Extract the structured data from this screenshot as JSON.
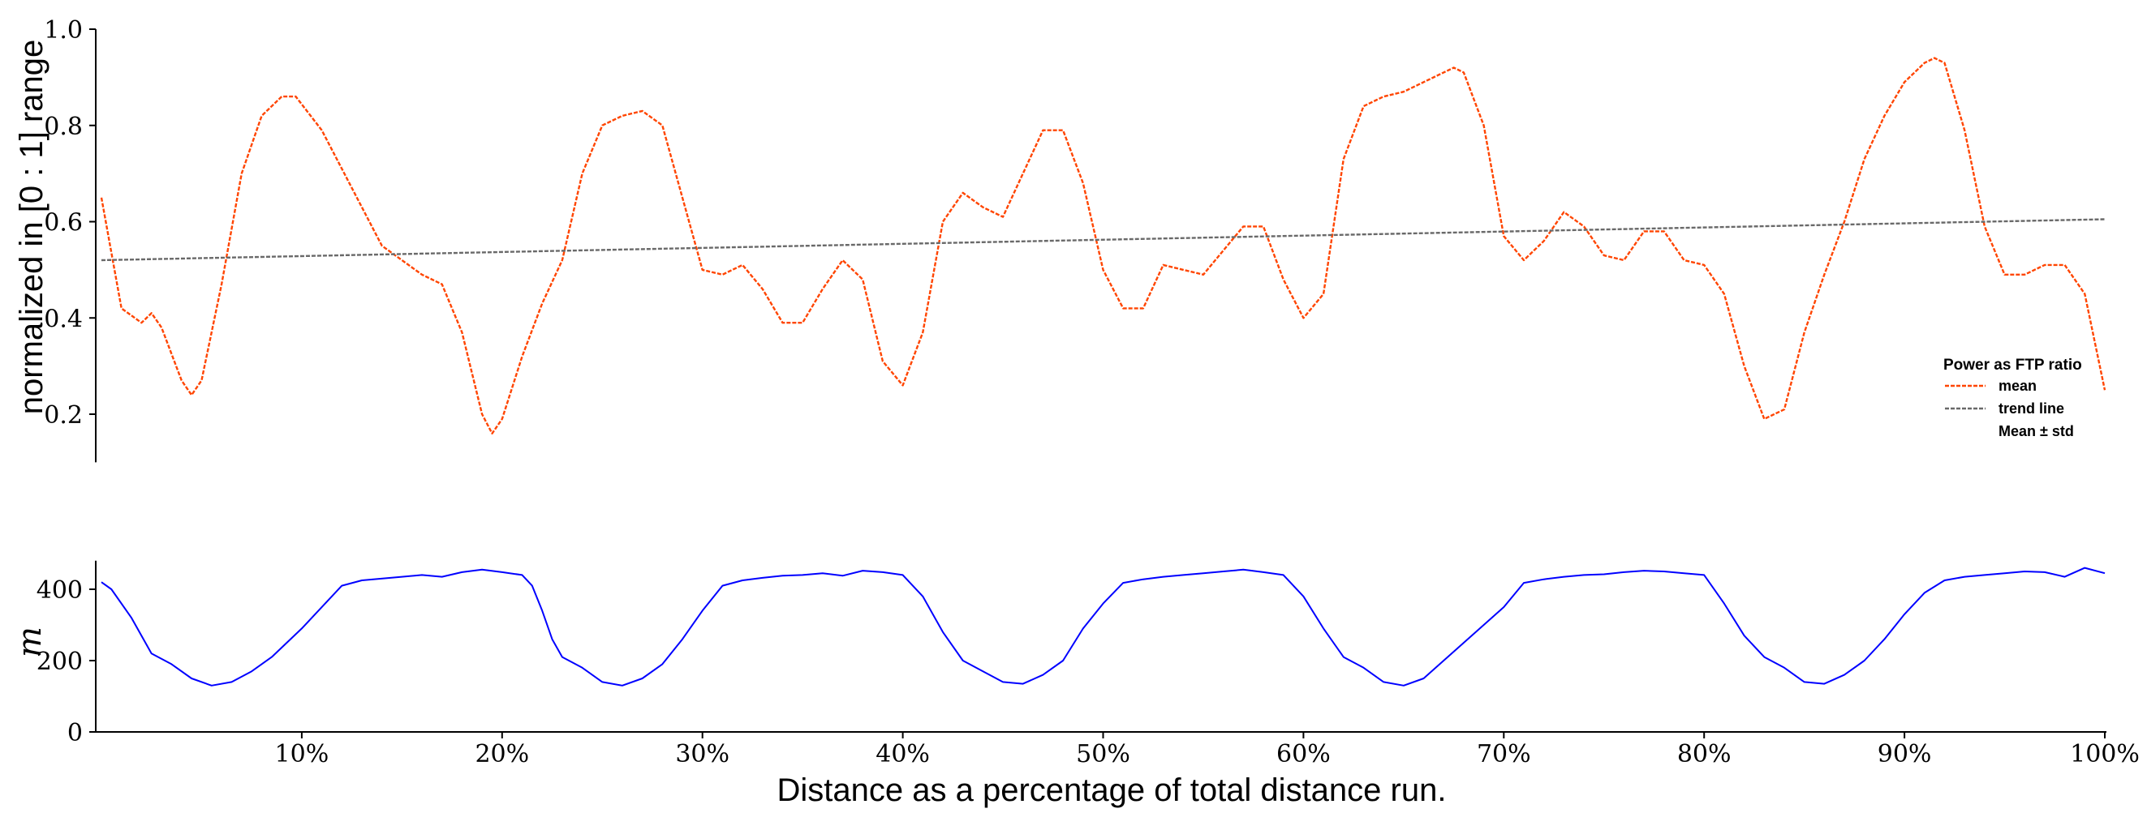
{
  "chart_data": [
    {
      "type": "line",
      "ylabel": "normalized in [0 : 1] range",
      "ylim": [
        0.1,
        1.0
      ],
      "yticks": [
        0.2,
        0.4,
        0.6,
        0.8,
        1.0
      ],
      "ytick_labels": [
        "0.2",
        "0.4",
        "0.6",
        "0.8",
        "1.0"
      ],
      "x_unit": "% of total distance",
      "xlim": [
        0,
        100
      ],
      "legend": {
        "title": "Power as FTP ratio",
        "placement": "right",
        "entries": [
          "mean",
          "trend line",
          "Mean ± std"
        ]
      },
      "series": [
        {
          "name": "mean",
          "color": "#ff4500",
          "style": "dashed",
          "x": [
            0,
            1,
            2,
            2.5,
            3,
            4,
            4.5,
            5,
            6,
            7,
            8,
            9,
            9.7,
            11,
            12,
            14,
            16,
            17,
            18,
            19,
            19.5,
            20,
            21,
            22,
            23,
            24,
            25,
            26,
            27,
            28,
            29,
            30,
            31,
            32,
            33,
            34,
            35,
            36,
            37,
            38,
            39,
            40,
            41,
            42,
            43,
            44,
            45,
            46,
            47,
            48,
            49,
            50,
            51,
            52,
            53,
            54,
            55,
            56,
            57,
            58,
            59,
            60,
            61,
            62,
            63,
            64,
            65,
            66,
            67,
            67.5,
            68,
            69,
            70,
            71,
            72,
            73,
            74,
            75,
            76,
            77,
            78,
            79,
            80,
            81,
            82,
            83,
            84,
            85,
            86,
            87,
            88,
            89,
            90,
            91,
            91.5,
            92,
            93,
            94,
            95,
            96,
            97,
            98,
            99,
            100
          ],
          "values": [
            0.65,
            0.42,
            0.39,
            0.41,
            0.38,
            0.27,
            0.24,
            0.27,
            0.47,
            0.7,
            0.82,
            0.86,
            0.86,
            0.79,
            0.71,
            0.55,
            0.49,
            0.47,
            0.37,
            0.2,
            0.16,
            0.19,
            0.32,
            0.43,
            0.52,
            0.7,
            0.8,
            0.82,
            0.83,
            0.8,
            0.65,
            0.5,
            0.49,
            0.51,
            0.46,
            0.39,
            0.39,
            0.46,
            0.52,
            0.48,
            0.31,
            0.26,
            0.37,
            0.6,
            0.66,
            0.63,
            0.61,
            0.7,
            0.79,
            0.79,
            0.68,
            0.5,
            0.42,
            0.42,
            0.51,
            0.5,
            0.49,
            0.54,
            0.59,
            0.59,
            0.48,
            0.4,
            0.45,
            0.73,
            0.84,
            0.86,
            0.87,
            0.89,
            0.91,
            0.92,
            0.91,
            0.8,
            0.57,
            0.52,
            0.56,
            0.62,
            0.59,
            0.53,
            0.52,
            0.58,
            0.58,
            0.52,
            0.51,
            0.45,
            0.3,
            0.19,
            0.21,
            0.37,
            0.49,
            0.6,
            0.73,
            0.82,
            0.89,
            0.93,
            0.94,
            0.93,
            0.79,
            0.59,
            0.49,
            0.49,
            0.51,
            0.51,
            0.45,
            0.25
          ]
        },
        {
          "name": "trend line",
          "color": "#696969",
          "style": "dashed",
          "x": [
            0,
            100
          ],
          "values": [
            0.52,
            0.605
          ]
        }
      ]
    },
    {
      "type": "line",
      "ylabel": "m",
      "ylim": [
        0,
        480
      ],
      "yticks": [
        0,
        200,
        400
      ],
      "ytick_labels": [
        "0",
        "200",
        "400"
      ],
      "xlabel": "Distance as a percentage of total distance run.",
      "xlim": [
        0,
        100
      ],
      "xticks": [
        10,
        20,
        30,
        40,
        50,
        60,
        70,
        80,
        90,
        100
      ],
      "xtick_labels": [
        "10%",
        "20%",
        "30%",
        "40%",
        "50%",
        "60%",
        "70%",
        "80%",
        "90%",
        "100%"
      ],
      "series": [
        {
          "color": "#0000ff",
          "x": [
            0,
            0.5,
            1.5,
            2.5,
            3.5,
            4.5,
            5.5,
            6.5,
            7.5,
            8.5,
            10,
            12,
            13,
            15,
            16,
            17,
            18,
            19,
            20,
            21,
            21.5,
            22,
            22.5,
            23,
            24,
            25,
            26,
            27,
            28,
            29,
            30,
            31,
            32,
            33,
            34,
            35,
            36,
            37,
            38,
            39,
            40,
            41,
            42,
            43,
            44,
            45,
            46,
            47,
            48,
            49,
            50,
            51,
            52,
            53,
            54,
            55,
            56,
            57,
            58,
            59,
            60,
            61,
            62,
            63,
            64,
            65,
            66,
            67,
            68,
            69,
            70,
            71,
            72,
            73,
            74,
            75,
            76,
            77,
            78,
            79,
            80,
            81,
            82,
            83,
            84,
            85,
            86,
            87,
            88,
            89,
            90,
            91,
            92,
            93,
            94,
            95,
            96,
            97,
            98,
            99,
            100
          ],
          "values": [
            420,
            400,
            320,
            220,
            190,
            150,
            130,
            140,
            170,
            210,
            290,
            410,
            425,
            435,
            440,
            435,
            448,
            455,
            448,
            440,
            410,
            340,
            260,
            210,
            180,
            140,
            130,
            150,
            190,
            260,
            340,
            410,
            425,
            432,
            438,
            440,
            445,
            438,
            452,
            448,
            440,
            380,
            280,
            200,
            170,
            140,
            135,
            160,
            200,
            290,
            360,
            418,
            428,
            435,
            440,
            445,
            450,
            455,
            448,
            440,
            380,
            290,
            210,
            180,
            140,
            130,
            150,
            200,
            250,
            300,
            350,
            418,
            428,
            435,
            440,
            442,
            448,
            452,
            450,
            445,
            440,
            360,
            270,
            210,
            180,
            140,
            135,
            160,
            200,
            260,
            330,
            390,
            425,
            435,
            440,
            445,
            450,
            448,
            435,
            460,
            445
          ]
        }
      ]
    }
  ]
}
